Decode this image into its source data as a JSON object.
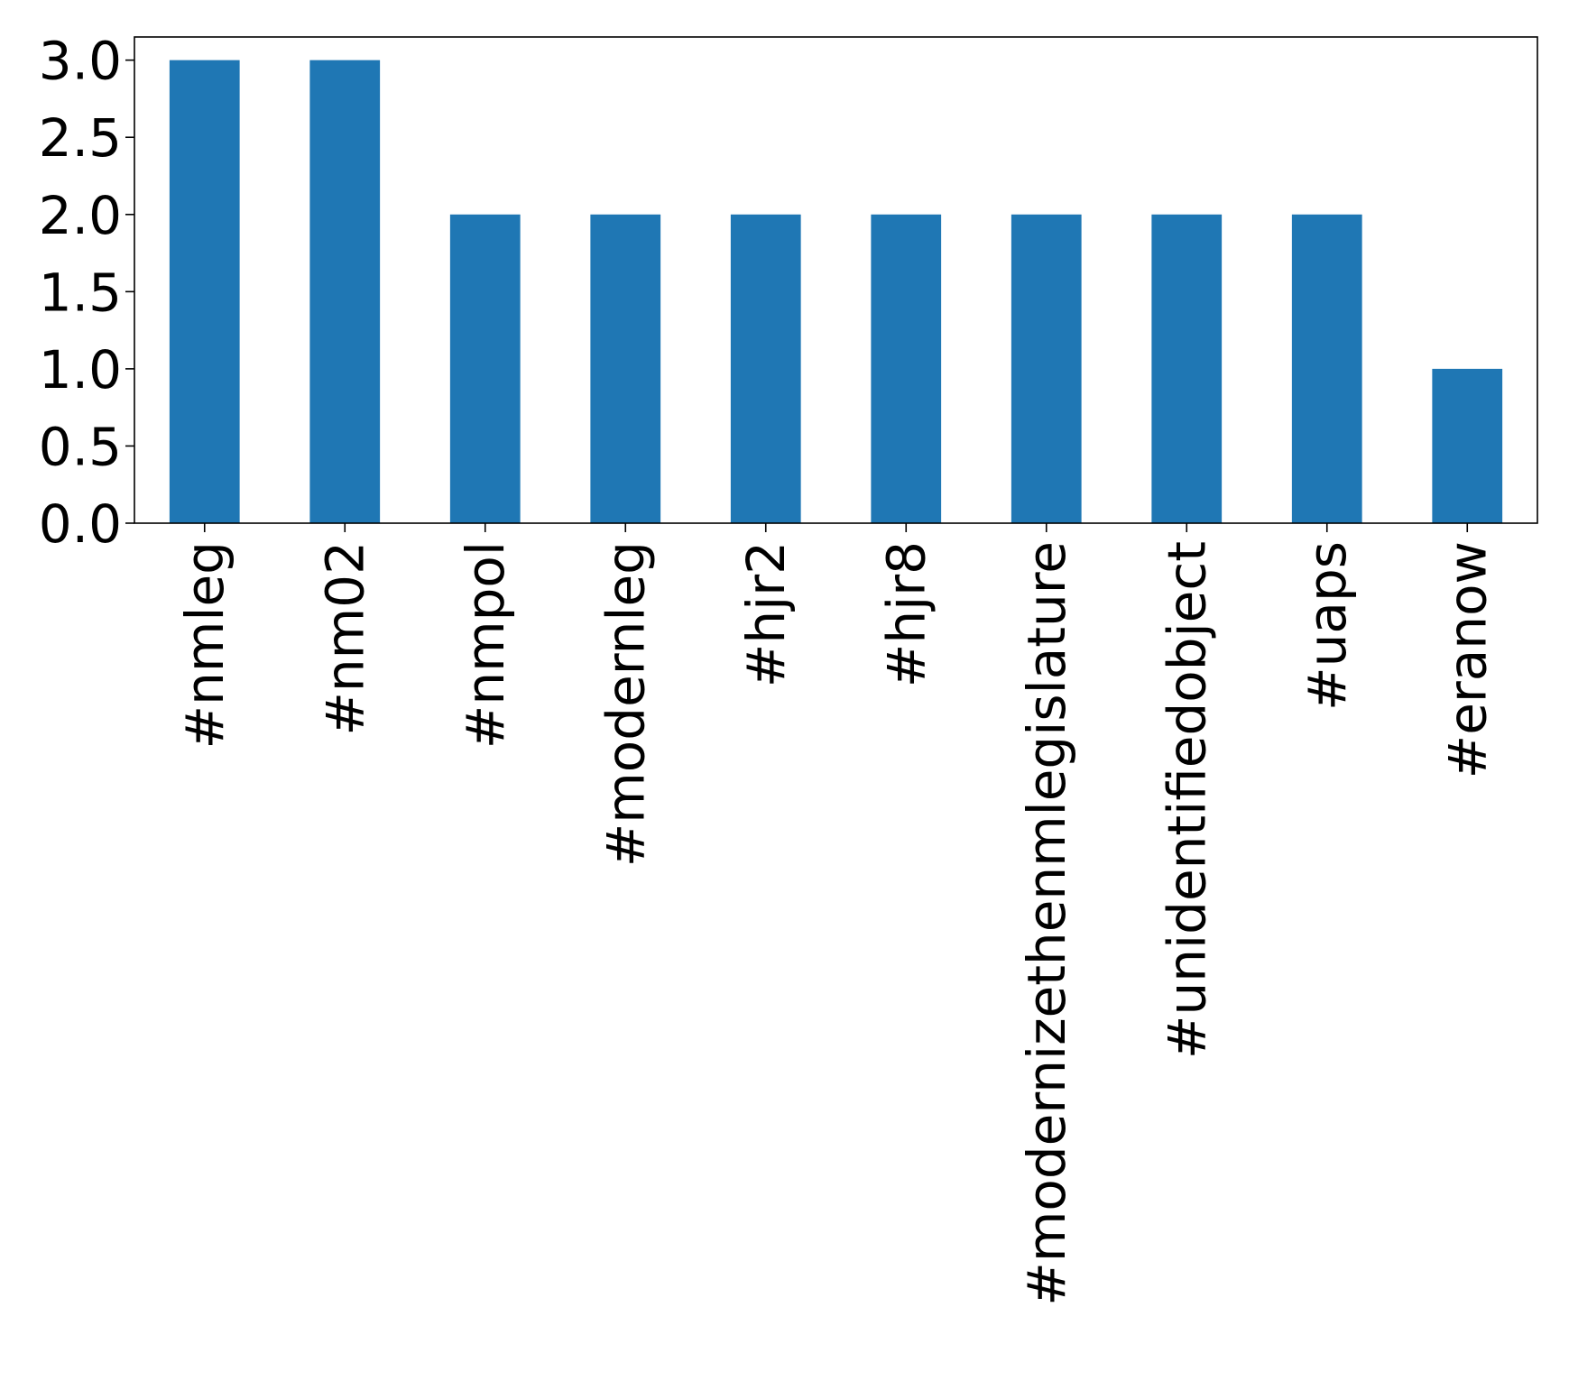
{
  "chart_data": {
    "type": "bar",
    "categories": [
      "#nmleg",
      "#nm02",
      "#nmpol",
      "#modernleg",
      "#hjr2",
      "#hjr8",
      "#modernizethenmlegislature",
      "#unidentifiedobject",
      "#uaps",
      "#eranow"
    ],
    "values": [
      3,
      3,
      2,
      2,
      2,
      2,
      2,
      2,
      2,
      1
    ],
    "title": "",
    "xlabel": "",
    "ylabel": "",
    "ylim": [
      0,
      3.15
    ],
    "yticks": [
      "0.0",
      "0.5",
      "1.0",
      "1.5",
      "2.0",
      "2.5",
      "3.0"
    ],
    "grid": false,
    "bar_color": "#1f77b4"
  }
}
